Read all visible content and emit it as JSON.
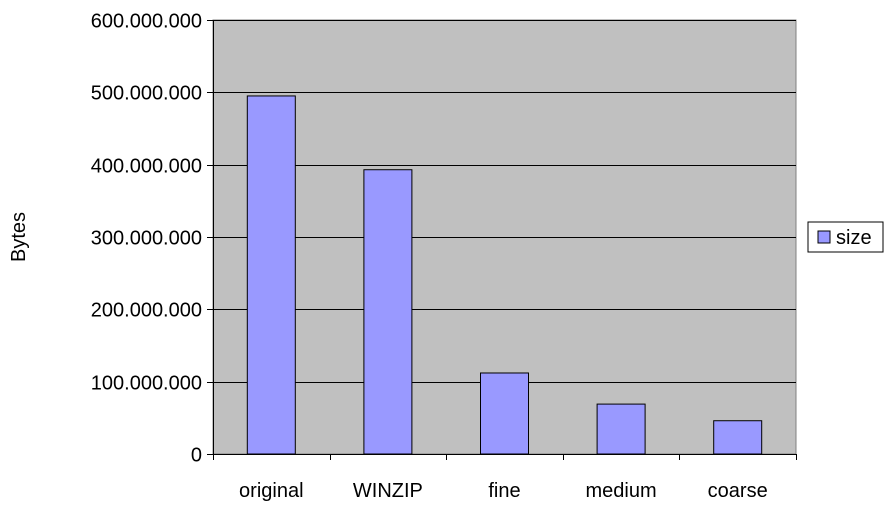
{
  "chart_data": {
    "type": "bar",
    "title": "",
    "xlabel": "",
    "ylabel": "Bytes",
    "categories": [
      "original",
      "WINZIP",
      "fine",
      "medium",
      "coarse"
    ],
    "series": [
      {
        "name": "size",
        "values": [
          495000000,
          393000000,
          112000000,
          69000000,
          46000000
        ]
      }
    ],
    "ylim": [
      0,
      600000000
    ],
    "yticks": [
      0,
      100000000,
      200000000,
      300000000,
      400000000,
      500000000,
      600000000
    ],
    "ytick_labels": [
      "0",
      "100.000.000",
      "200.000.000",
      "300.000.000",
      "400.000.000",
      "500.000.000",
      "600.000.000"
    ],
    "grid": true,
    "legend_position": "right",
    "colors": {
      "plot_background": "#c0c0c0",
      "bar_fill": "#9999ff",
      "bar_stroke": "#000000",
      "gridline": "#000000"
    }
  }
}
